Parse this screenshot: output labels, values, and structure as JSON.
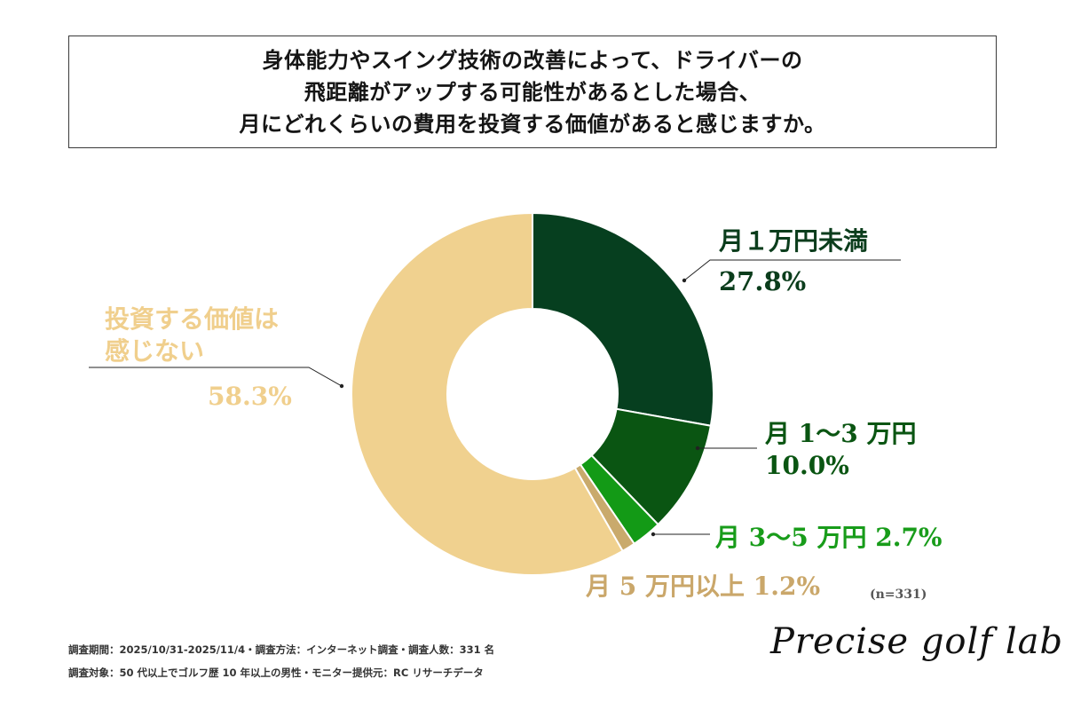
{
  "title_lines": [
    "身体能力やスイング技術の改善によって、ドライバーの",
    "飛距離がアップする可能性があるとした場合、",
    "月にどれくらいの費用を投資する価値があると感じますか。"
  ],
  "chart_data": {
    "type": "donut",
    "start_angle_deg": 0,
    "direction": "clockwise",
    "slices": [
      {
        "label": "月１万円未満",
        "value": 27.8,
        "value_label": "27.8%",
        "color": "#063f1f"
      },
      {
        "label": "月 1〜3 万円",
        "value": 10.0,
        "value_label": "10.0%",
        "color": "#0a5512"
      },
      {
        "label": "月 3〜5 万円",
        "value": 2.7,
        "value_label": "2.7%",
        "color": "#139a16"
      },
      {
        "label": "月 5 万円以上",
        "value": 1.2,
        "value_label": "1.2%",
        "color": "#c9aa6c"
      },
      {
        "label": "投資する価値は感じない",
        "value": 58.3,
        "value_label": "58.3%",
        "color": "#f0d18f"
      }
    ]
  },
  "labels": {
    "l1_name": "月１万円未満",
    "l1_value": "27.8%",
    "l2_name": "月 1〜3 万円",
    "l2_value": "10.0%",
    "l3": "月 3〜5 万円  2.7%",
    "l4": "月 5 万円以上  1.2%",
    "l5_line1": "投資する価値は",
    "l5_line2": "感じない",
    "l5_value": "58.3%"
  },
  "sample_note": "(n=331)",
  "footer": {
    "line1": "調査期間：2025/10/31-2025/11/4・調査方法：インターネット調査・調査人数：331 名",
    "line2": "調査対象：50 代以上でゴルフ歴 10 年以上の男性・モニター提供元：RC リサーチデータ"
  },
  "brand": "Precise golf lab"
}
